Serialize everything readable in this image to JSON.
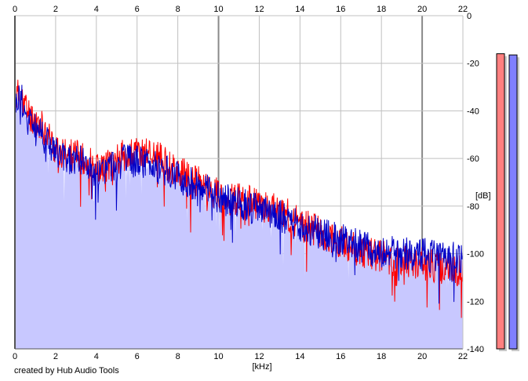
{
  "chart_data": {
    "type": "area",
    "xlabel": "[kHz]",
    "ylabel": "[dB]",
    "xlim": [
      0,
      22
    ],
    "ylim": [
      -140,
      0
    ],
    "x_ticks": [
      0,
      2,
      4,
      6,
      8,
      10,
      12,
      14,
      16,
      18,
      20,
      22
    ],
    "y_ticks": [
      0,
      -20,
      -40,
      -60,
      -80,
      -100,
      -120,
      -140
    ],
    "grid": true,
    "series": [
      {
        "color": "#ff0000",
        "x": [
          0,
          0.25,
          0.5,
          0.75,
          1,
          1.25,
          1.5,
          1.75,
          2,
          2.5,
          3,
          3.5,
          4,
          4.5,
          5,
          5.5,
          6,
          6.5,
          7,
          7.5,
          8,
          8.5,
          9,
          9.5,
          10,
          10.5,
          11,
          11.5,
          12,
          12.5,
          13,
          13.5,
          14,
          14.5,
          15,
          15.5,
          16,
          16.5,
          17,
          17.5,
          18,
          18.5,
          19,
          19.5,
          20,
          20.5,
          21,
          21.5,
          22
        ],
        "values": [
          -35,
          -32,
          -38,
          -42,
          -44,
          -46,
          -48,
          -52,
          -57,
          -58,
          -59,
          -60,
          -64,
          -63,
          -60,
          -58,
          -58,
          -57,
          -59,
          -63,
          -65,
          -68,
          -70,
          -73,
          -75,
          -77,
          -77,
          -78,
          -80,
          -81,
          -82,
          -84,
          -88,
          -89,
          -91,
          -93,
          -95,
          -97,
          -99,
          -100,
          -101,
          -102,
          -103,
          -104,
          -104,
          -105,
          -106,
          -107,
          -108
        ]
      },
      {
        "color": "#0000c8",
        "x": [
          0,
          0.25,
          0.5,
          0.75,
          1,
          1.25,
          1.5,
          1.75,
          2,
          2.5,
          3,
          3.5,
          4,
          4.5,
          5,
          5.5,
          6,
          6.5,
          7,
          7.5,
          8,
          8.5,
          9,
          9.5,
          10,
          10.5,
          11,
          11.5,
          12,
          12.5,
          13,
          13.5,
          14,
          14.5,
          15,
          15.5,
          16,
          16.5,
          17,
          17.5,
          18,
          18.5,
          19,
          19.5,
          20,
          20.5,
          21,
          21.5,
          22
        ],
        "values": [
          -38,
          -33,
          -40,
          -44,
          -46,
          -48,
          -50,
          -54,
          -58,
          -60,
          -61,
          -62,
          -68,
          -64,
          -62,
          -61,
          -61,
          -62,
          -64,
          -66,
          -68,
          -70,
          -71,
          -74,
          -76,
          -78,
          -79,
          -80,
          -82,
          -83,
          -84,
          -86,
          -89,
          -90,
          -91,
          -93,
          -94,
          -95,
          -97,
          -98,
          -99,
          -99,
          -100,
          -100,
          -100,
          -101,
          -101,
          -102,
          -102
        ]
      }
    ],
    "fill_color": "#c8c8ff",
    "meters": {
      "left": {
        "color": "#ff8080",
        "level_db": -16
      },
      "right": {
        "color": "#8080ff",
        "level_db": -16.5
      }
    }
  },
  "footer": {
    "credit": "created by Hub Audio Tools"
  }
}
